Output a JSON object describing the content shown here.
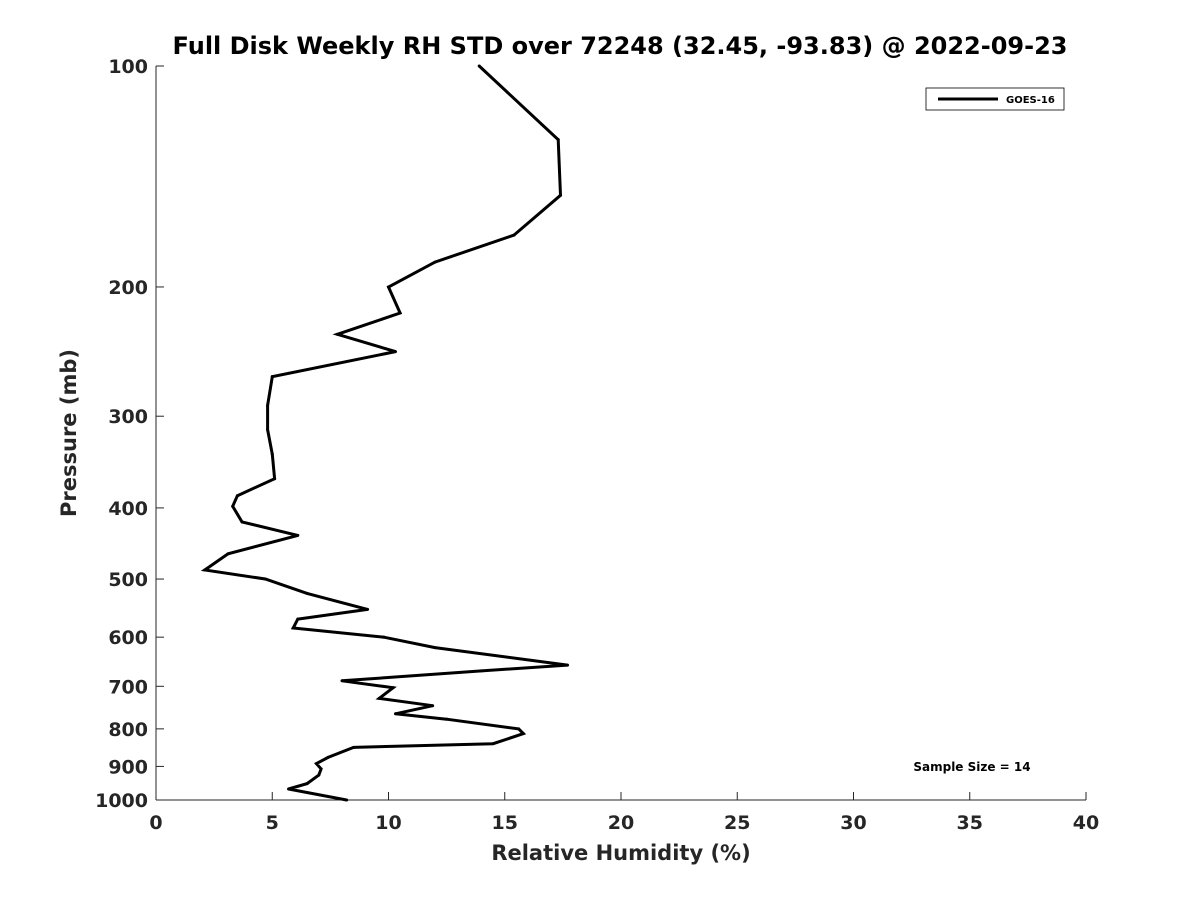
{
  "chart_data": {
    "type": "line",
    "title": "Full Disk Weekly RH STD over 72248 (32.45, -93.83) @ 2022-09-23",
    "xlabel": "Relative Humidity (%)",
    "ylabel": "Pressure (mb)",
    "xlim": [
      0,
      40
    ],
    "ylim": [
      1000,
      100
    ],
    "yscale": "log",
    "y_reversed": true,
    "grid": false,
    "legend_position": "top-right",
    "xticks": [
      0,
      5,
      10,
      15,
      20,
      25,
      30,
      35,
      40
    ],
    "yticks": [
      100,
      200,
      300,
      400,
      500,
      600,
      700,
      800,
      900,
      1000
    ],
    "annotation": "Sample Size = 14",
    "series": [
      {
        "name": "GOES-16",
        "color": "#000000",
        "points": [
          [
            13.9,
            100
          ],
          [
            17.3,
            126
          ],
          [
            17.4,
            150
          ],
          [
            15.4,
            170
          ],
          [
            12.0,
            185
          ],
          [
            10.0,
            200
          ],
          [
            10.5,
            217
          ],
          [
            7.8,
            232
          ],
          [
            10.3,
            245
          ],
          [
            5.0,
            265
          ],
          [
            4.8,
            290
          ],
          [
            4.8,
            313
          ],
          [
            5.0,
            338
          ],
          [
            5.1,
            365
          ],
          [
            3.5,
            385
          ],
          [
            3.3,
            398
          ],
          [
            3.7,
            418
          ],
          [
            6.1,
            436
          ],
          [
            3.1,
            462
          ],
          [
            2.1,
            486
          ],
          [
            4.7,
            500
          ],
          [
            6.5,
            523
          ],
          [
            9.1,
            550
          ],
          [
            6.1,
            567
          ],
          [
            5.9,
            583
          ],
          [
            9.8,
            600
          ],
          [
            12.0,
            620
          ],
          [
            17.7,
            655
          ],
          [
            14.0,
            667
          ],
          [
            8.0,
            688
          ],
          [
            10.2,
            703
          ],
          [
            9.6,
            727
          ],
          [
            11.9,
            744
          ],
          [
            10.3,
            763
          ],
          [
            12.5,
            776
          ],
          [
            15.6,
            800
          ],
          [
            15.8,
            812
          ],
          [
            14.5,
            838
          ],
          [
            8.5,
            848
          ],
          [
            7.4,
            875
          ],
          [
            6.9,
            892
          ],
          [
            7.1,
            907
          ],
          [
            7.0,
            925
          ],
          [
            6.5,
            950
          ],
          [
            5.7,
            966
          ],
          [
            8.2,
            1000
          ]
        ]
      }
    ]
  }
}
